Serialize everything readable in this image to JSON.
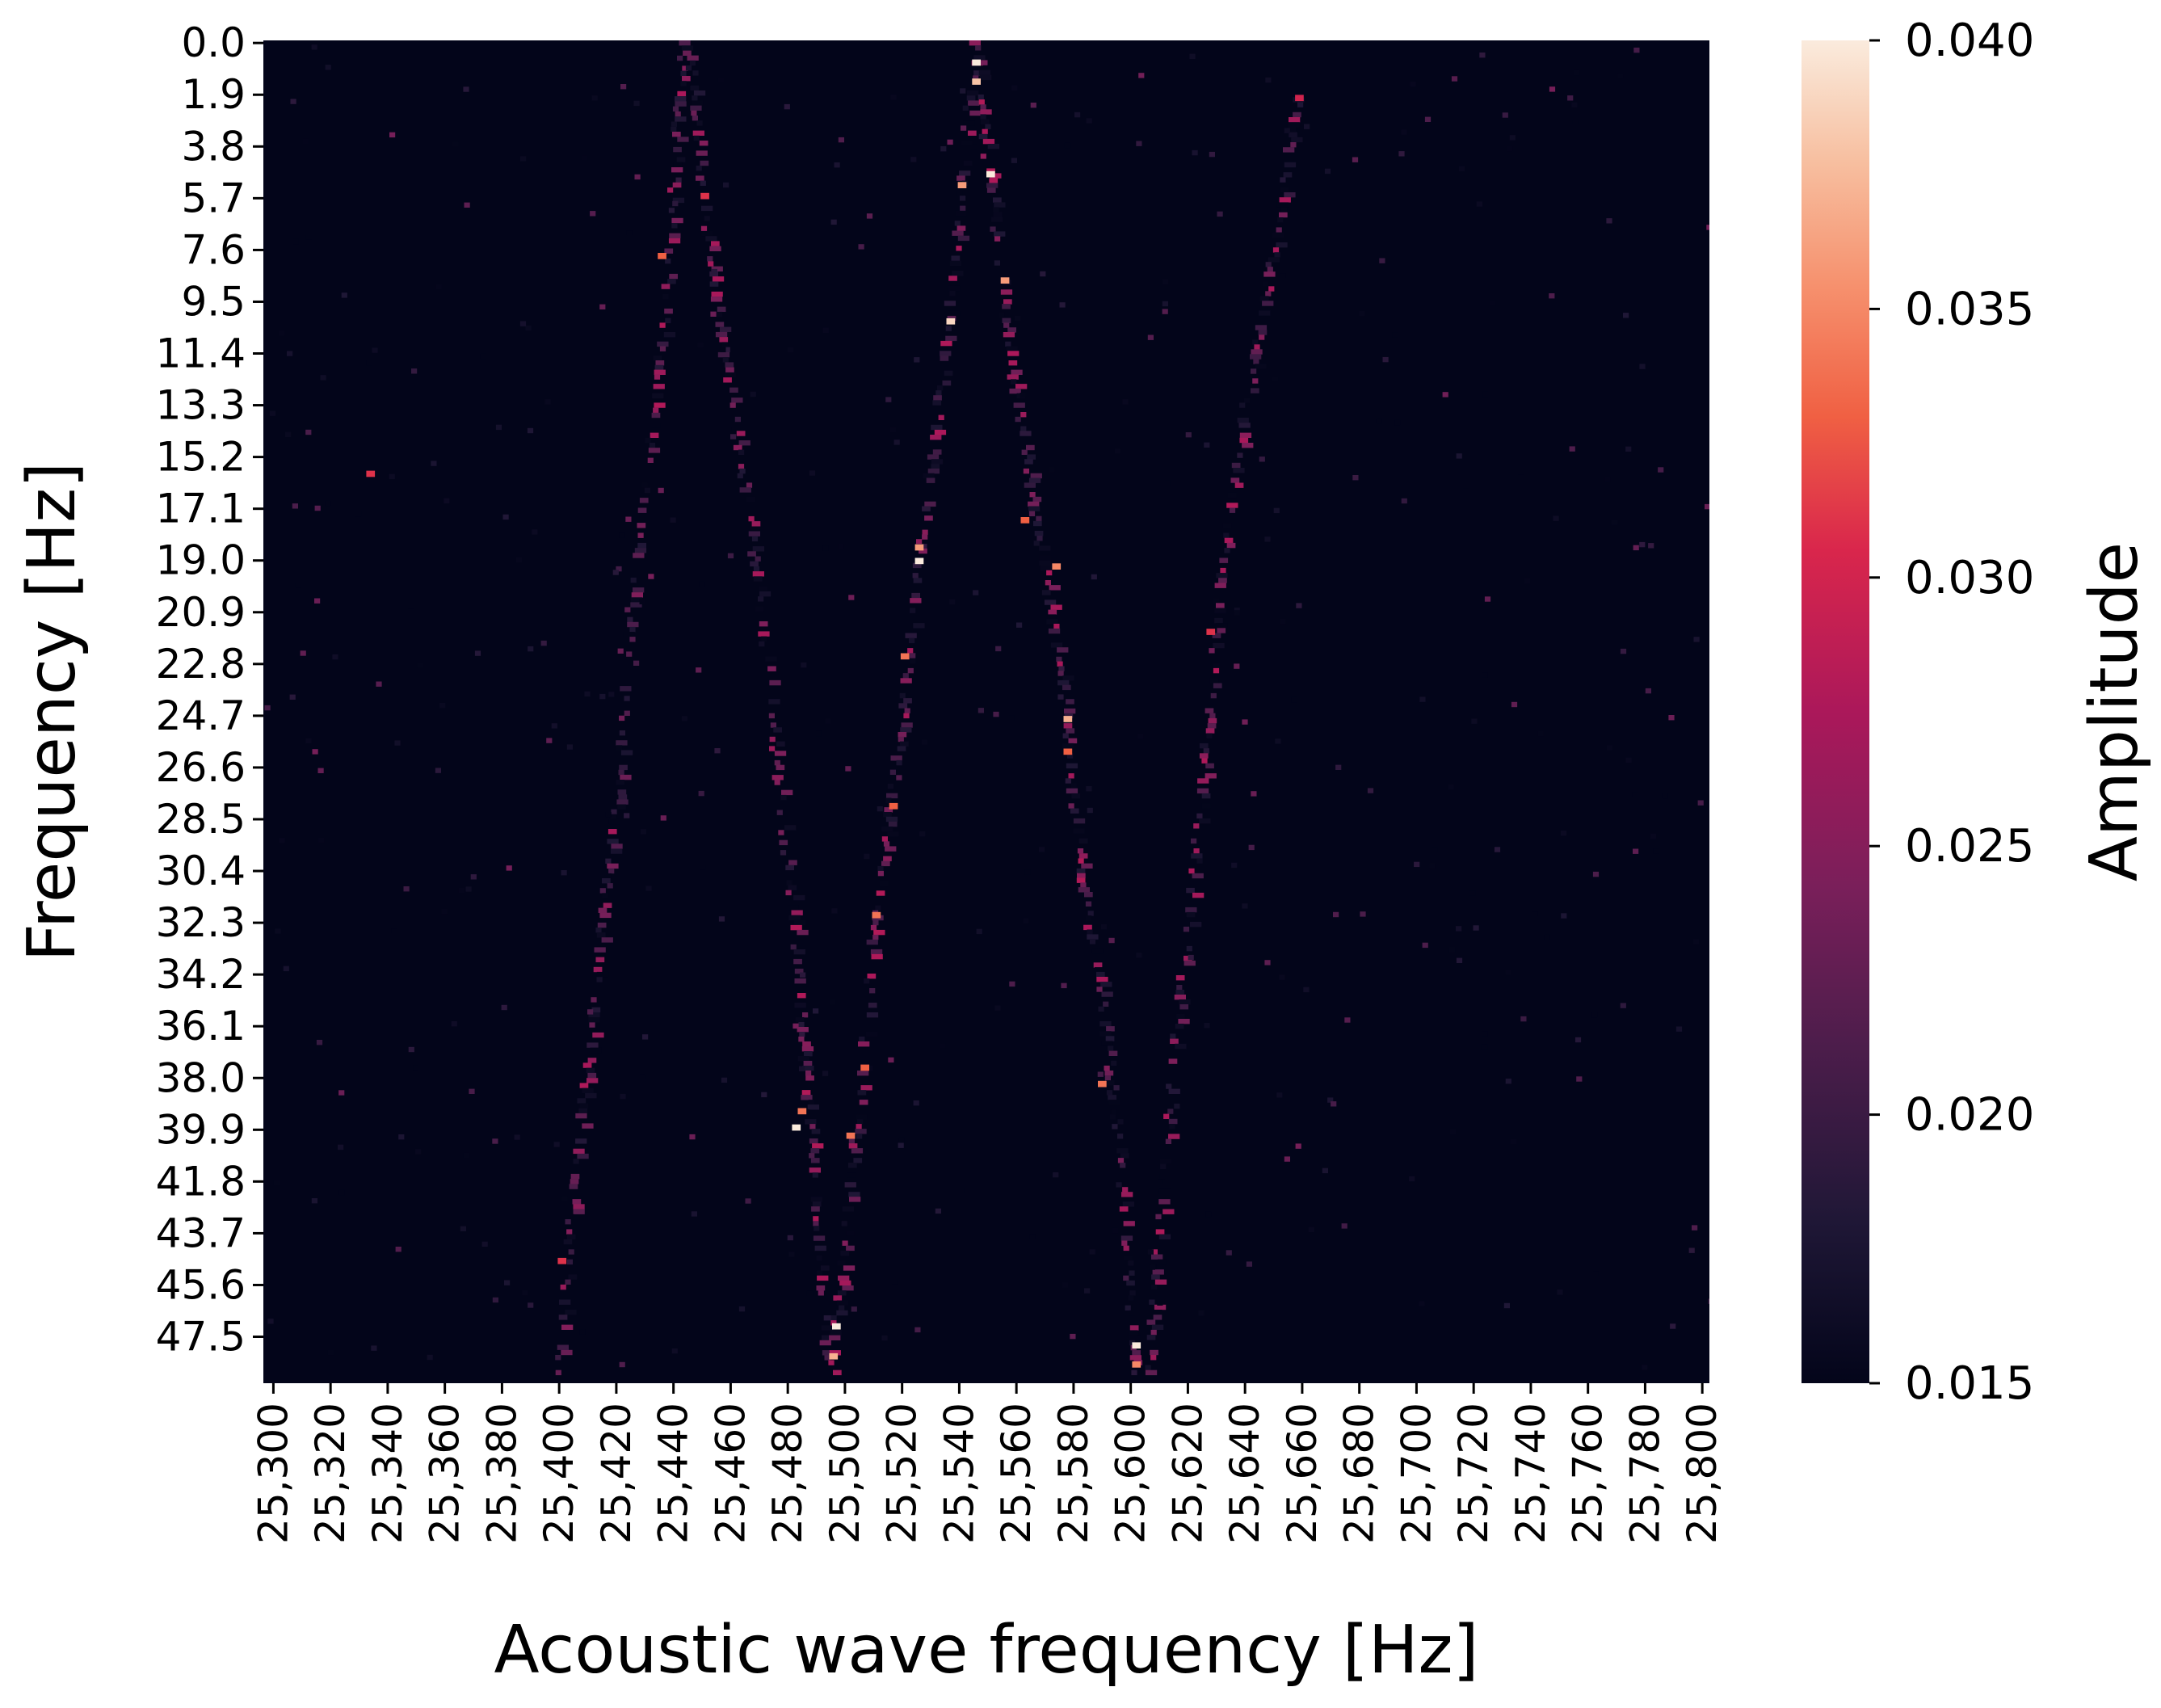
{
  "chart_data": {
    "type": "heatmap",
    "title": "",
    "xlabel": "Acoustic wave frequency [Hz]",
    "ylabel": "Frequency [Hz]",
    "colorbar_label": "Amplitude",
    "x_range": [
      25297,
      25803
    ],
    "y_range": [
      0.0,
      49.3
    ],
    "x_ticks": [
      25300,
      25320,
      25340,
      25360,
      25380,
      25400,
      25420,
      25440,
      25460,
      25480,
      25500,
      25520,
      25540,
      25560,
      25580,
      25600,
      25620,
      25640,
      25660,
      25680,
      25700,
      25720,
      25740,
      25760,
      25780,
      25800
    ],
    "x_tick_labels": [
      "25,300",
      "25,320",
      "25,340",
      "25,360",
      "25,380",
      "25,400",
      "25,420",
      "25,440",
      "25,460",
      "25,480",
      "25,500",
      "25,520",
      "25,540",
      "25,560",
      "25,580",
      "25,600",
      "25,620",
      "25,640",
      "25,660",
      "25,680",
      "25,700",
      "25,720",
      "25,740",
      "25,760",
      "25,780",
      "25,800"
    ],
    "y_ticks": [
      0.0,
      1.9,
      3.8,
      5.7,
      7.6,
      9.5,
      11.4,
      13.3,
      15.2,
      17.1,
      19.0,
      20.9,
      22.8,
      24.7,
      26.6,
      28.5,
      30.4,
      32.3,
      34.2,
      36.1,
      38.0,
      39.9,
      41.8,
      43.7,
      45.6,
      47.5
    ],
    "y_tick_labels": [
      "0.0",
      "1.9",
      "3.8",
      "5.7",
      "7.6",
      "9.5",
      "11.4",
      "13.3",
      "15.2",
      "17.1",
      "19.0",
      "20.9",
      "22.8",
      "24.7",
      "26.6",
      "28.5",
      "30.4",
      "32.3",
      "34.2",
      "36.1",
      "38.0",
      "39.9",
      "41.8",
      "43.7",
      "45.6",
      "47.5"
    ],
    "colorbar": {
      "range": [
        0.015,
        0.04
      ],
      "ticks": [
        0.015,
        0.02,
        0.025,
        0.03,
        0.035,
        0.04
      ],
      "tick_labels": [
        "0.015",
        "0.020",
        "0.025",
        "0.030",
        "0.035",
        "0.040"
      ],
      "colormap": "rocket",
      "background_value": 0.015
    },
    "ridges": [
      {
        "name": "",
        "points": [
          [
            25443,
            0.0
          ],
          [
            25437,
            9.5
          ],
          [
            25433,
            13.3
          ],
          [
            25426,
            19.0
          ],
          [
            25421,
            26.6
          ],
          [
            25413,
            34.2
          ],
          [
            25405,
            41.8
          ],
          [
            25400,
            49.0
          ]
        ]
      },
      {
        "name": "",
        "points": [
          [
            25445,
            0.0
          ],
          [
            25450,
            5.7
          ],
          [
            25460,
            13.3
          ],
          [
            25466,
            17.1
          ],
          [
            25472,
            22.8
          ],
          [
            25476,
            26.6
          ],
          [
            25482,
            32.3
          ],
          [
            25486,
            38.0
          ],
          [
            25490,
            43.7
          ],
          [
            25494,
            49.0
          ]
        ]
      },
      {
        "name": "",
        "points": [
          [
            25545,
            0.0
          ],
          [
            25540,
            5.7
          ],
          [
            25535,
            11.4
          ],
          [
            25530,
            15.2
          ],
          [
            25525,
            19.0
          ],
          [
            25520,
            24.7
          ],
          [
            25515,
            28.5
          ],
          [
            25510,
            32.3
          ],
          [
            25505,
            38.0
          ],
          [
            25500,
            43.7
          ],
          [
            25495,
            49.0
          ]
        ]
      },
      {
        "name": "",
        "points": [
          [
            25545,
            0.0
          ],
          [
            25550,
            4.7
          ],
          [
            25555,
            9.5
          ],
          [
            25560,
            13.3
          ],
          [
            25566,
            17.1
          ],
          [
            25572,
            20.9
          ],
          [
            25577,
            24.7
          ],
          [
            25582,
            30.4
          ],
          [
            25588,
            34.2
          ],
          [
            25593,
            38.0
          ],
          [
            25598,
            43.7
          ],
          [
            25601,
            49.0
          ]
        ]
      },
      {
        "name": "",
        "points": [
          [
            25658,
            1.9
          ],
          [
            25650,
            7.6
          ],
          [
            25640,
            13.3
          ],
          [
            25632,
            19.0
          ],
          [
            25627,
            24.7
          ],
          [
            25622,
            30.4
          ],
          [
            25616,
            36.1
          ],
          [
            25611,
            41.8
          ],
          [
            25606,
            49.0
          ]
        ]
      }
    ],
    "hotspots": [
      {
        "x": 25545,
        "y": 0.7,
        "value": 0.04
      },
      {
        "x": 25545,
        "y": 1.4,
        "value": 0.038
      },
      {
        "x": 25550,
        "y": 4.8,
        "value": 0.04
      },
      {
        "x": 25540,
        "y": 5.2,
        "value": 0.036
      },
      {
        "x": 25555,
        "y": 8.7,
        "value": 0.036
      },
      {
        "x": 25536,
        "y": 10.2,
        "value": 0.039
      },
      {
        "x": 25525,
        "y": 19.0,
        "value": 0.04
      },
      {
        "x": 25525,
        "y": 18.5,
        "value": 0.036
      },
      {
        "x": 25520,
        "y": 22.5,
        "value": 0.034
      },
      {
        "x": 25577,
        "y": 24.8,
        "value": 0.037
      },
      {
        "x": 25573,
        "y": 19.2,
        "value": 0.035
      },
      {
        "x": 25516,
        "y": 28.0,
        "value": 0.033
      },
      {
        "x": 25510,
        "y": 32.0,
        "value": 0.034
      },
      {
        "x": 25506,
        "y": 37.6,
        "value": 0.033
      },
      {
        "x": 25482,
        "y": 39.8,
        "value": 0.04
      },
      {
        "x": 25484,
        "y": 39.2,
        "value": 0.034
      },
      {
        "x": 25501,
        "y": 40.1,
        "value": 0.034
      },
      {
        "x": 25496,
        "y": 47.1,
        "value": 0.04
      },
      {
        "x": 25495,
        "y": 48.2,
        "value": 0.037
      },
      {
        "x": 25601,
        "y": 47.8,
        "value": 0.04
      },
      {
        "x": 25601,
        "y": 48.5,
        "value": 0.035
      },
      {
        "x": 25589,
        "y": 38.2,
        "value": 0.034
      },
      {
        "x": 25577,
        "y": 26.0,
        "value": 0.033
      },
      {
        "x": 25562,
        "y": 17.5,
        "value": 0.033
      },
      {
        "x": 25435,
        "y": 7.8,
        "value": 0.033
      },
      {
        "x": 25450,
        "y": 5.6,
        "value": 0.031
      },
      {
        "x": 25333,
        "y": 15.8,
        "value": 0.031
      },
      {
        "x": 25627,
        "y": 21.6,
        "value": 0.031
      },
      {
        "x": 25400,
        "y": 44.7,
        "value": 0.031
      },
      {
        "x": 25658,
        "y": 2.0,
        "value": 0.03
      }
    ]
  }
}
